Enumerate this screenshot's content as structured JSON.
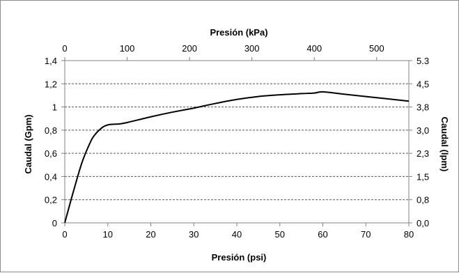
{
  "chart_data": {
    "type": "line",
    "xlabel": "Presión (psi)",
    "x2label": "Presión (kPa)",
    "ylabel": "Caudal (Gpm)",
    "y2label": "Caudal (lpm)",
    "xlim": [
      0,
      80
    ],
    "ylim": [
      0,
      1.4
    ],
    "x2lim": [
      0,
      551.6
    ],
    "y2lim": [
      0,
      5.3
    ],
    "x_ticks": [
      "0",
      "10",
      "20",
      "30",
      "40",
      "50",
      "60",
      "70",
      "80"
    ],
    "y_ticks": [
      "0",
      "0,2",
      "0,4",
      "0,6",
      "0,8",
      "1",
      "1,2",
      "1,4"
    ],
    "x2_ticks": [
      {
        "value": 0,
        "label": "0"
      },
      {
        "value": 100,
        "label": "100"
      },
      {
        "value": 200,
        "label": "200"
      },
      {
        "value": 300,
        "label": "300"
      },
      {
        "value": 400,
        "label": "400"
      },
      {
        "value": 500,
        "label": "500"
      }
    ],
    "y2_ticks": [
      "0,0",
      "0,8",
      "1,5",
      "2,3",
      "3,0",
      "3,8",
      "4,5",
      "5.3"
    ],
    "grid": "horizontal-dashed",
    "series": [
      {
        "color": "#000000",
        "x": [
          0,
          2,
          4,
          6,
          7,
          8,
          9,
          10,
          11,
          13,
          15,
          20,
          25,
          30,
          35,
          40,
          45,
          50,
          55,
          58,
          60,
          65,
          70,
          75,
          80
        ],
        "y": [
          0,
          0.27,
          0.52,
          0.7,
          0.76,
          0.8,
          0.83,
          0.845,
          0.85,
          0.855,
          0.87,
          0.915,
          0.955,
          0.99,
          1.03,
          1.065,
          1.09,
          1.105,
          1.115,
          1.12,
          1.13,
          1.11,
          1.09,
          1.07,
          1.05
        ]
      }
    ]
  }
}
